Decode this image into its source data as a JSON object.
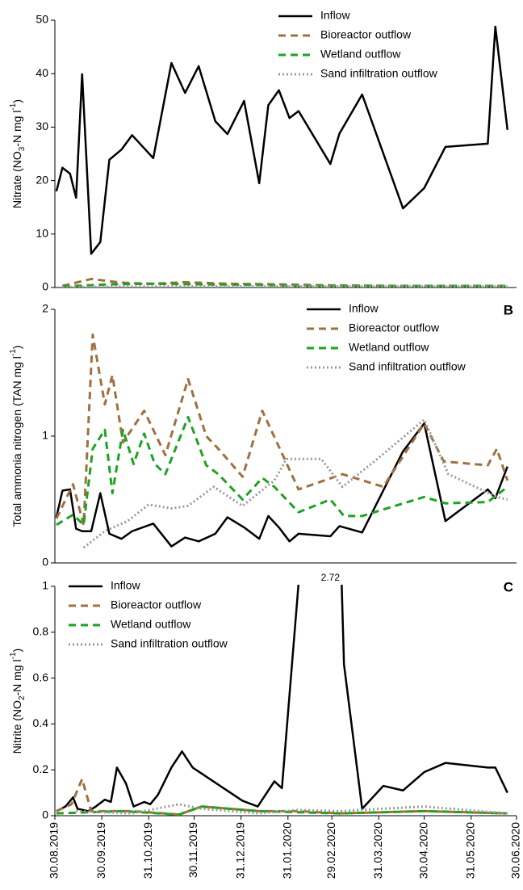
{
  "chart_data": [
    {
      "type": "line",
      "panel": null,
      "legend": "upper right",
      "ylabel": [
        "Nitrate (NO",
        "3",
        "-N mg l",
        "-1",
        ")"
      ],
      "xlim": [
        "30.08.2019",
        "30.06.2020"
      ],
      "ylim": [
        0,
        50
      ],
      "yticks": [
        0,
        10,
        20,
        30,
        40,
        50
      ],
      "series": [
        {
          "name": "Inflow",
          "color": "#000000",
          "linestyle": "solid",
          "x": [
            "31.08.2019",
            "04.09.2019",
            "09.09.2019",
            "13.09.2019",
            "17.09.2019",
            "23.09.2019",
            "29.09.2019",
            "05.10.2019",
            "13.10.2019",
            "20.10.2019",
            "03.11.2019",
            "15.11.2019",
            "24.11.2019",
            "03.12.2019",
            "14.12.2019",
            "22.12.2019",
            "02.01.2020",
            "12.01.2020",
            "18.01.2020",
            "25.01.2020",
            "01.02.2020",
            "07.02.2020",
            "28.02.2020",
            "05.03.2020",
            "20.03.2020",
            "16.04.2020",
            "30.04.2020",
            "14.05.2020",
            "11.06.2020",
            "16.06.2020",
            "24.06.2020"
          ],
          "values": [
            18,
            22.4,
            21.3,
            16.8,
            39.9,
            6.3,
            8.5,
            23.9,
            25.8,
            28.5,
            24.2,
            42,
            36.4,
            41.4,
            31.1,
            28.7,
            34.9,
            19.5,
            34.1,
            36.9,
            31.7,
            33,
            23.1,
            28.8,
            36.1,
            14.8,
            18.6,
            26.3,
            26.9,
            48.8,
            29.5
          ]
        },
        {
          "name": "Bioreactor outflow",
          "color": "#a0703f",
          "linestyle": "dashed",
          "x": [
            "04.09.2019",
            "23.09.2019",
            "13.10.2019",
            "03.11.2019",
            "24.11.2019",
            "22.12.2019",
            "25.01.2020",
            "28.02.2020",
            "16.04.2020",
            "24.06.2020"
          ],
          "values": [
            0.3,
            1.6,
            0.9,
            0.7,
            1.0,
            0.7,
            0.6,
            0.4,
            0.3,
            0.3
          ]
        },
        {
          "name": "Wetland outflow",
          "color": "#1fa31f",
          "linestyle": "dashed",
          "x": [
            "04.09.2019",
            "05.10.2019",
            "03.11.2019",
            "03.12.2019",
            "12.01.2020",
            "07.02.2020",
            "20.03.2020",
            "24.06.2020"
          ],
          "values": [
            0.2,
            0.6,
            0.7,
            0.6,
            0.5,
            0.3,
            0.3,
            0.3
          ]
        },
        {
          "name": "Sand infiltration outflow",
          "color": "#9a9a9a",
          "linestyle": "dotted",
          "x": [
            "04.09.2019",
            "03.11.2019",
            "12.01.2020",
            "20.03.2020",
            "24.06.2020"
          ],
          "values": [
            0.1,
            0.2,
            0.2,
            0.2,
            0.2
          ]
        }
      ]
    },
    {
      "type": "line",
      "panel": "B",
      "legend": "upper center",
      "ylabel": [
        "Total ammonia nitrogen (TAN mg l",
        "-1",
        ")"
      ],
      "xlim": [
        "30.08.2019",
        "30.06.2020"
      ],
      "ylim": [
        0,
        2
      ],
      "yticks": [
        0,
        1,
        2
      ],
      "series": [
        {
          "name": "Inflow",
          "color": "#000000",
          "linestyle": "solid",
          "x": [
            "31.08.2019",
            "04.09.2019",
            "09.09.2019",
            "13.09.2019",
            "17.09.2019",
            "23.09.2019",
            "29.09.2019",
            "05.10.2019",
            "13.10.2019",
            "20.10.2019",
            "03.11.2019",
            "15.11.2019",
            "24.11.2019",
            "03.12.2019",
            "14.12.2019",
            "22.12.2019",
            "02.01.2020",
            "12.01.2020",
            "18.01.2020",
            "25.01.2020",
            "01.02.2020",
            "07.02.2020",
            "28.02.2020",
            "05.03.2020",
            "20.03.2020",
            "16.04.2020",
            "30.04.2020",
            "14.05.2020",
            "11.06.2020",
            "16.06.2020",
            "24.06.2020"
          ],
          "values": [
            0.36,
            0.57,
            0.58,
            0.27,
            0.25,
            0.25,
            0.55,
            0.23,
            0.19,
            0.25,
            0.31,
            0.13,
            0.2,
            0.17,
            0.23,
            0.36,
            0.28,
            0.19,
            0.37,
            0.28,
            0.17,
            0.23,
            0.21,
            0.29,
            0.24,
            0.88,
            1.1,
            0.33,
            0.58,
            0.51,
            0.76
          ]
        },
        {
          "name": "Bioreactor outflow",
          "color": "#a0703f",
          "linestyle": "dashed",
          "x": [
            "31.08.2019",
            "11.09.2019",
            "18.09.2019",
            "24.09.2019",
            "02.10.2019",
            "07.10.2019",
            "14.10.2019",
            "28.10.2019",
            "11.11.2019",
            "26.11.2019",
            "08.12.2019",
            "16.12.2019",
            "01.01.2020",
            "14.01.2020",
            "07.02.2020",
            "07.03.2020",
            "03.04.2020",
            "30.04.2020",
            "13.05.2020",
            "11.06.2020",
            "17.06.2020",
            "24.06.2020"
          ],
          "values": [
            0.35,
            0.62,
            0.3,
            1.8,
            1.25,
            1.48,
            0.95,
            1.2,
            0.85,
            1.45,
            1.0,
            0.9,
            0.68,
            1.2,
            0.58,
            0.7,
            0.6,
            1.1,
            0.8,
            0.77,
            0.9,
            0.65
          ]
        },
        {
          "name": "Wetland outflow",
          "color": "#1fa31f",
          "linestyle": "dashed",
          "x": [
            "31.08.2019",
            "11.09.2019",
            "18.09.2019",
            "24.09.2019",
            "02.10.2019",
            "07.10.2019",
            "14.10.2019",
            "21.10.2019",
            "28.10.2019",
            "04.11.2019",
            "11.11.2019",
            "26.11.2019",
            "08.12.2019",
            "16.12.2019",
            "01.01.2020",
            "14.01.2020",
            "22.01.2020",
            "07.02.2020",
            "28.02.2020",
            "08.03.2020",
            "20.03.2020",
            "30.04.2020",
            "14.05.2020",
            "11.06.2020",
            "24.06.2020"
          ],
          "values": [
            0.3,
            0.38,
            0.3,
            0.9,
            1.05,
            0.55,
            1.05,
            0.78,
            1.02,
            0.78,
            0.7,
            1.15,
            0.77,
            0.7,
            0.5,
            0.67,
            0.6,
            0.4,
            0.5,
            0.37,
            0.37,
            0.52,
            0.47,
            0.48,
            0.6
          ]
        },
        {
          "name": "Sand infiltration outflow",
          "color": "#9a9a9a",
          "linestyle": "dotted",
          "x": [
            "18.09.2019",
            "02.10.2019",
            "17.10.2019",
            "31.10.2019",
            "15.11.2019",
            "26.11.2019",
            "13.12.2019",
            "01.01.2020",
            "22.01.2020",
            "30.01.2020",
            "22.02.2020",
            "07.03.2020",
            "28.03.2020",
            "30.04.2020",
            "16.05.2020",
            "17.06.2020",
            "24.06.2020"
          ],
          "values": [
            0.12,
            0.25,
            0.33,
            0.46,
            0.43,
            0.45,
            0.6,
            0.45,
            0.65,
            0.82,
            0.82,
            0.6,
            0.8,
            1.13,
            0.7,
            0.52,
            0.5
          ]
        }
      ]
    },
    {
      "type": "line",
      "panel": "C",
      "legend": "upper left",
      "ylabel": [
        "Nitrite (NO",
        "2",
        "-N mg l",
        "-1",
        ")"
      ],
      "xlim": [
        "30.08.2019",
        "30.06.2020"
      ],
      "ylim": [
        0,
        1
      ],
      "yticks": [
        0,
        0.2,
        0.4,
        0.6,
        0.8,
        1
      ],
      "xticks": [
        "30.08.2019",
        "30.09.2019",
        "31.10.2019",
        "30.11.2019",
        "31.12.2019",
        "31.01.2020",
        "29.02.2020",
        "31.03.2020",
        "30.04.2020",
        "31.05.2020",
        "30.06.2020"
      ],
      "series": [
        {
          "name": "Inflow",
          "color": "#000000",
          "linestyle": "solid",
          "x": [
            "31.08.2019",
            "06.09.2019",
            "11.09.2019",
            "14.09.2019",
            "21.09.2019",
            "26.09.2019",
            "02.10.2019",
            "06.10.2019",
            "10.10.2019",
            "16.10.2019",
            "21.10.2019",
            "28.10.2019",
            "01.11.2019",
            "06.11.2019",
            "15.11.2019",
            "22.11.2019",
            "29.11.2019",
            "01.01.2020",
            "11.01.2020",
            "22.01.2020",
            "27.01.2020",
            "28.02.2020",
            "08.03.2020",
            "20.03.2020",
            "03.04.2020",
            "16.04.2020",
            "30.04.2020",
            "14.05.2020",
            "11.06.2020",
            "16.06.2020",
            "24.06.2020"
          ],
          "values": [
            0.02,
            0.04,
            0.08,
            0.03,
            0.02,
            0.04,
            0.07,
            0.06,
            0.21,
            0.14,
            0.04,
            0.06,
            0.05,
            0.09,
            0.21,
            0.28,
            0.21,
            0.065,
            0.04,
            0.15,
            0.12,
            2.72,
            0.66,
            0.03,
            0.13,
            0.11,
            0.19,
            0.23,
            0.21,
            0.21,
            0.1
          ],
          "value_labels": [
            null,
            null,
            null,
            null,
            null,
            null,
            null,
            null,
            null,
            null,
            null,
            null,
            null,
            null,
            null,
            null,
            null,
            null,
            null,
            null,
            null,
            "2.72",
            null,
            null,
            null,
            null,
            null,
            null,
            null,
            null,
            null
          ]
        },
        {
          "name": "Bioreactor outflow",
          "color": "#a0703f",
          "linestyle": "dashed",
          "x": [
            "31.08.2019",
            "10.09.2019",
            "17.09.2019",
            "23.09.2019",
            "20.10.2019",
            "20.11.2019",
            "05.12.2019",
            "12.01.2020",
            "07.02.2020",
            "05.03.2020",
            "30.04.2020",
            "24.06.2020"
          ],
          "values": [
            0.02,
            0.05,
            0.16,
            0.02,
            0.02,
            0.005,
            0.04,
            0.02,
            0.02,
            0.01,
            0.02,
            0.01
          ]
        },
        {
          "name": "Wetland outflow",
          "color": "#1fa31f",
          "linestyle": "dashed",
          "x": [
            "31.08.2019",
            "13.10.2019",
            "20.11.2019",
            "05.12.2019",
            "12.01.2020",
            "07.02.2020",
            "05.03.2020",
            "30.04.2020",
            "24.06.2020"
          ],
          "values": [
            0.01,
            0.02,
            0.005,
            0.04,
            0.02,
            0.015,
            0.01,
            0.02,
            0.01
          ]
        },
        {
          "name": "Sand infiltration outflow",
          "color": "#9a9a9a",
          "linestyle": "dotted",
          "x": [
            "13.09.2019",
            "20.10.2019",
            "20.11.2019",
            "05.12.2019",
            "12.01.2020",
            "07.02.2020",
            "05.03.2020",
            "30.04.2020",
            "24.06.2020"
          ],
          "values": [
            0.02,
            0.01,
            0.05,
            0.03,
            0.01,
            0.025,
            0.02,
            0.04,
            0.01
          ]
        }
      ]
    }
  ]
}
